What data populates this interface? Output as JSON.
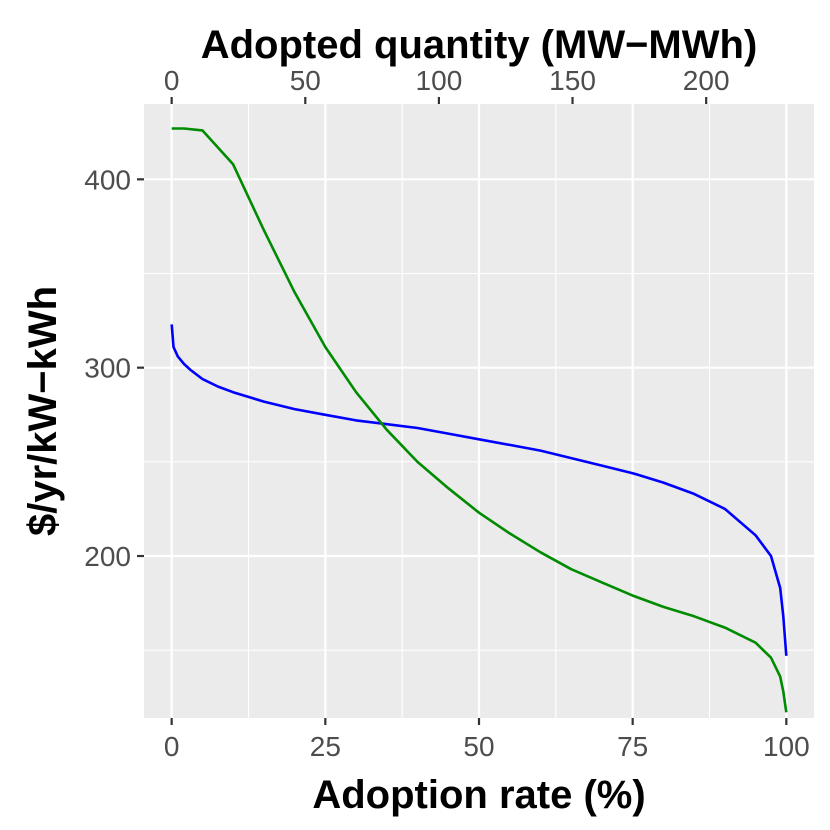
{
  "chart_data": {
    "type": "line",
    "title": "",
    "xlabel": "Adoption rate (%)",
    "ylabel": "$/yr/kW−kWh",
    "x2label": "Adopted quantity (MW−MWh)",
    "xlim": [
      -4.5,
      104.5
    ],
    "ylim": [
      114,
      440
    ],
    "x_ticks": [
      0,
      25,
      50,
      75,
      100
    ],
    "x_tick_labels": [
      "0",
      "25",
      "50",
      "75",
      "100"
    ],
    "y_ticks": [
      200,
      300,
      400
    ],
    "y_tick_labels": [
      "200",
      "300",
      "400"
    ],
    "x2_ticks": [
      0,
      50,
      100,
      150,
      200
    ],
    "x2_tick_labels": [
      "0",
      "50",
      "100",
      "150",
      "200"
    ],
    "x2_max_at_100pct": 230,
    "grid": true,
    "colors": {
      "panel": "#ebebeb",
      "grid": "#ffffff",
      "tick": "#333333"
    },
    "series": [
      {
        "name": "blue curve",
        "color": "#0000ff",
        "x": [
          0,
          0.3,
          1,
          2,
          3,
          5,
          7.5,
          10,
          15,
          20,
          25,
          30,
          35,
          40,
          45,
          50,
          55,
          60,
          65,
          70,
          75,
          80,
          85,
          90,
          95,
          97.5,
          99,
          99.5,
          100
        ],
        "y": [
          323,
          311,
          306,
          302,
          299,
          294,
          290,
          287,
          282,
          278,
          275,
          272,
          270,
          268,
          265,
          262,
          259,
          256,
          252,
          248,
          244,
          239,
          233,
          225,
          211,
          200,
          183,
          168,
          147
        ]
      },
      {
        "name": "green curve",
        "color": "#008b00",
        "x": [
          0,
          2,
          5,
          10,
          15,
          20,
          25,
          30,
          35,
          40,
          45,
          50,
          55,
          60,
          65,
          70,
          75,
          80,
          85,
          90,
          95,
          97.5,
          99,
          99.5,
          100
        ],
        "y": [
          427,
          427,
          426,
          408,
          373,
          340,
          311,
          287,
          267,
          250,
          236,
          223,
          212,
          202,
          193,
          186,
          179,
          173,
          168,
          162,
          154,
          146,
          136,
          128,
          117
        ]
      }
    ]
  }
}
